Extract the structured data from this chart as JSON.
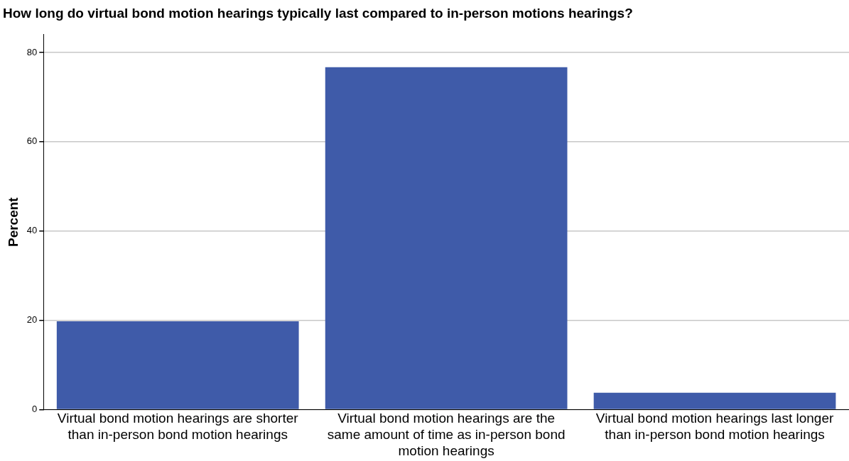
{
  "chart_data": {
    "type": "bar",
    "title": "How long do virtual bond motion hearings typically last compared to in-person motions hearings?",
    "ylabel": "Percent",
    "categories": [
      "Virtual bond motion hearings are shorter than in-person bond motion hearings",
      "Virtual bond motion hearings are the same amount of time as in-person bond motion hearings",
      "Virtual bond motion hearings last longer than in-person bond motion hearings"
    ],
    "values": [
      19.8,
      76.7,
      3.8
    ],
    "color": "#3f5ba9",
    "ylim": [
      0,
      84
    ],
    "yticks": [
      0,
      20,
      40,
      60,
      80
    ],
    "grid": "y"
  }
}
